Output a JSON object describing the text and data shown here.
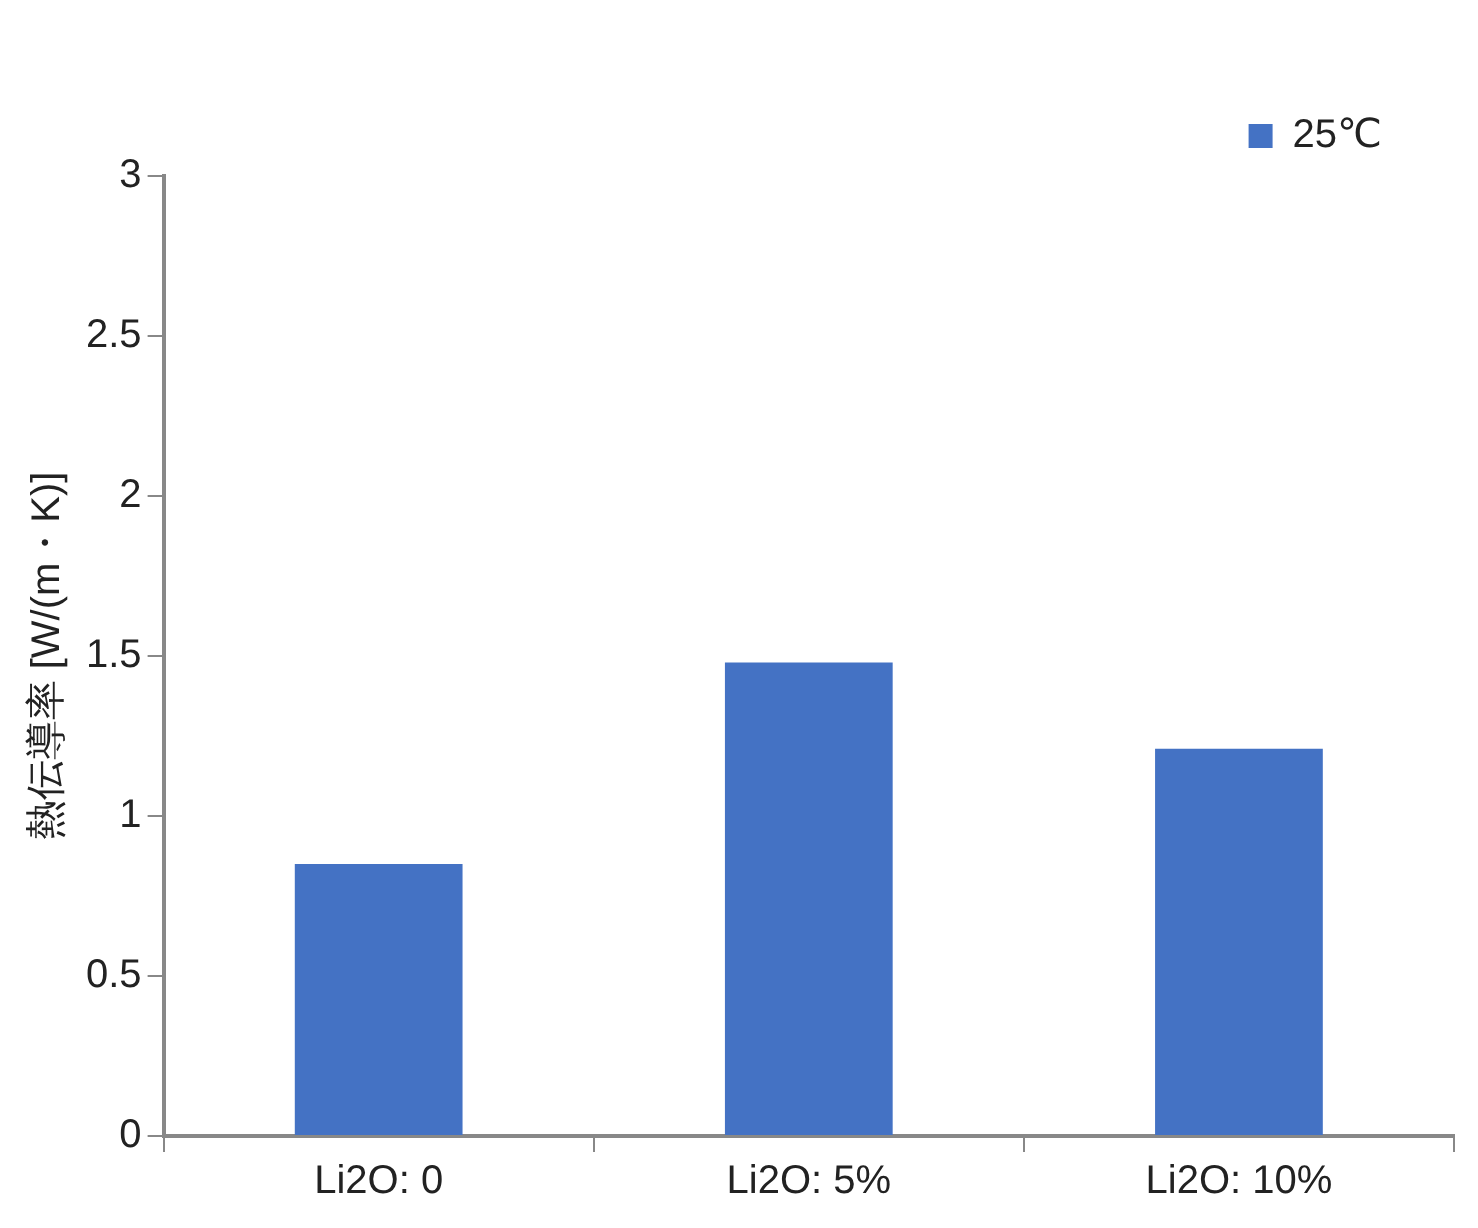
{
  "chart_data": {
    "type": "bar",
    "ylabel": "熱伝導率 [W/(m・K)]",
    "categories": [
      "Li2O: 0",
      "Li2O: 5%",
      "Li2O: 10%"
    ],
    "series": [
      {
        "name": "25℃",
        "color": "#4472c4",
        "values": [
          0.85,
          1.48,
          1.21
        ]
      }
    ],
    "ylim": [
      0,
      3
    ],
    "yticks": [
      0,
      0.5,
      1,
      1.5,
      2,
      2.5,
      3
    ],
    "grid": false,
    "legend": "top right"
  }
}
